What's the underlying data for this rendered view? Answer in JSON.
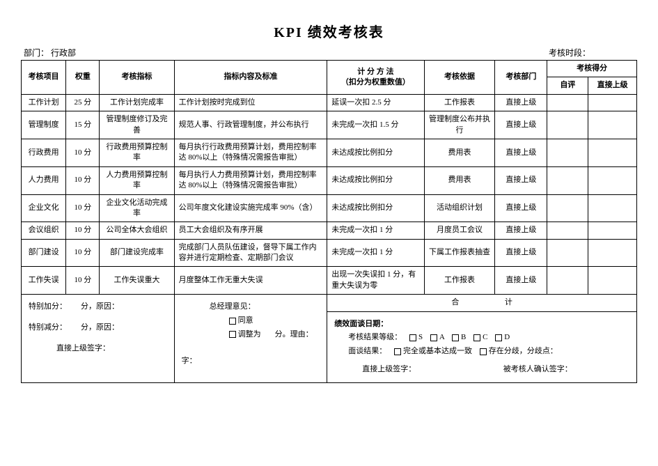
{
  "title": "KPI 绩效考核表",
  "meta": {
    "dept_label": "部门：",
    "dept_value": "行政部",
    "period_label": "考核时段：",
    "period_value": ""
  },
  "headers": {
    "item": "考核项目",
    "weight": "权重",
    "indicator": "考核指标",
    "content": "指标内容及标准",
    "method_top": "计 分 方 法",
    "method_bottom": "（扣分为权重数值）",
    "basis": "考核依据",
    "dept": "考核部门",
    "score": "考核得分",
    "self": "自评",
    "superior": "直接上级"
  },
  "rows": [
    {
      "item": "工作计划",
      "weight": "25 分",
      "indicator": "工作计划完成率",
      "content": "工作计划按时完成到位",
      "method": "延误一次扣 2.5 分",
      "basis": "工作报表",
      "dept": "直接上级"
    },
    {
      "item": "管理制度",
      "weight": "15 分",
      "indicator": "管理制度修订及完善",
      "content": "规范人事、行政管理制度，并公布执行",
      "method": "未完成一次扣 1.5 分",
      "basis": "管理制度公布并执行",
      "dept": "直接上级"
    },
    {
      "item": "行政费用",
      "weight": "10 分",
      "indicator": "行政费用预算控制率",
      "content": "每月执行行政费用预算计划，费用控制率达 80%以上（特殊情况需报告审批）",
      "method": "未达成按比例扣分",
      "basis": "费用表",
      "dept": "直接上级"
    },
    {
      "item": "人力费用",
      "weight": "10 分",
      "indicator": "人力费用预算控制率",
      "content": "每月执行人力费用预算计划，费用控制率达 80%以上（特殊情况需报告审批）",
      "method": "未达成按比例扣分",
      "basis": "费用表",
      "dept": "直接上级"
    },
    {
      "item": "企业文化",
      "weight": "10 分",
      "indicator": "企业文化活动完成率",
      "content": "公司年度文化建设实施完成率 90%（含）",
      "method": "未达成按比例扣分",
      "basis": "活动组织计划",
      "dept": "直接上级"
    },
    {
      "item": "会议组织",
      "weight": "10 分",
      "indicator": "公司全体大会组织",
      "content": "员工大会组织及有序开展",
      "method": "未完成一次扣 1 分",
      "basis": "月度员工会议",
      "dept": "直接上级"
    },
    {
      "item": "部门建设",
      "weight": "10 分",
      "indicator": "部门建设完成率",
      "content": "完成部门人员队伍建设，督导下属工作内容并进行定期检查、定期部门会议",
      "method": "未完成一次扣 1 分",
      "basis": "下属工作报表抽查",
      "dept": "直接上级"
    },
    {
      "item": "工作失误",
      "weight": "10 分",
      "indicator": "工作失误重大",
      "content": "月度整体工作无重大失误",
      "method": "出现一次失误扣 1 分，有重大失误为零",
      "basis": "工作报表",
      "dept": "直接上级"
    }
  ],
  "footer": {
    "add_label": "特别加分：",
    "add_unit": "分，原因：",
    "sub_label": "特别减分：",
    "sub_unit": "分，原因：",
    "sup_sign": "直接上级签字：",
    "gm_opinion": "总经理意见：",
    "agree": "同意",
    "adjust_pre": "调整为",
    "adjust_unit": "分。理由：",
    "gm_sign": "字：",
    "total_left": "合",
    "total_right": "计",
    "interview_date": "绩效面谈日期：",
    "grade_label": "考核结果等级：",
    "gS": "S",
    "gA": "A",
    "gB": "B",
    "gC": "C",
    "gD": "D",
    "result_label": "面谈结果：",
    "result_a": "完全或基本达成一致",
    "result_b": "存在分歧，分歧点：",
    "sup_sign2": "直接上级签字：",
    "confirm_sign": "被考核人确认签字："
  },
  "colwidths": {
    "item": 60,
    "weight": 45,
    "indicator": 100,
    "content": 205,
    "method": 130,
    "basis": 95,
    "dept": 70,
    "self": 55,
    "sup": 65
  }
}
